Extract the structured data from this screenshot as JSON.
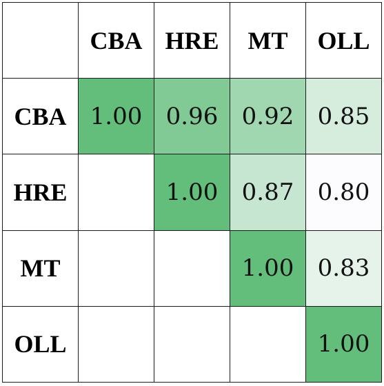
{
  "chart_data": {
    "type": "heatmap",
    "title": "",
    "xlabel": "",
    "ylabel": "",
    "columns": [
      "CBA",
      "HRE",
      "MT",
      "OLL"
    ],
    "rows": [
      "CBA",
      "HRE",
      "MT",
      "OLL"
    ],
    "values": [
      [
        "1.00",
        "0.96",
        "0.92",
        "0.85"
      ],
      [
        null,
        "1.00",
        "0.87",
        "0.80"
      ],
      [
        null,
        null,
        "1.00",
        "0.83"
      ],
      [
        null,
        null,
        null,
        "1.00"
      ]
    ],
    "color_scale": {
      "low_value": 0.8,
      "high_value": 1.0,
      "low_color": "#fcfcff",
      "high_color": "#63be7b"
    },
    "empty_cell_color": "#ffffff",
    "grid": true,
    "legend": "none"
  }
}
